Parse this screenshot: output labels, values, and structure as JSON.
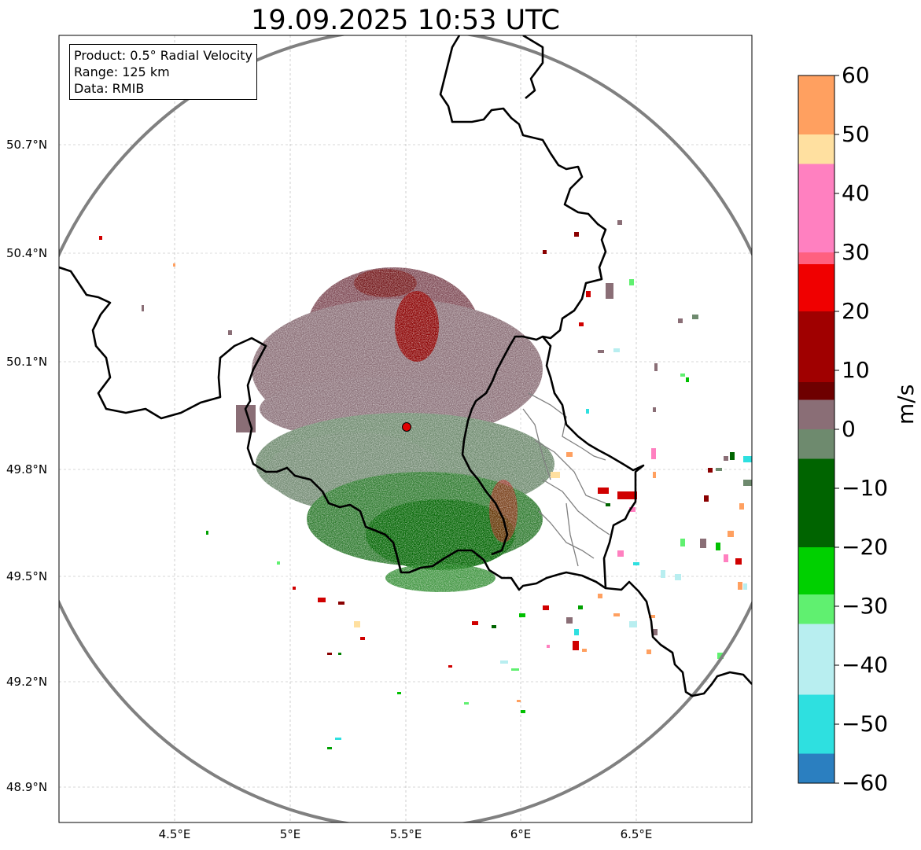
{
  "title": "19.09.2025 10:53 UTC",
  "info": {
    "product": "Product: 0.5° Radial Velocity",
    "range": "Range: 125 km",
    "data": "Data: RMIB"
  },
  "axes": {
    "lat_labels": [
      "50.7°N",
      "50.4°N",
      "50.1°N",
      "49.8°N",
      "49.5°N",
      "49.2°N",
      "48.9°N"
    ],
    "lon_labels": [
      "4.5°E",
      "5°E",
      "5.5°E",
      "6°E",
      "6.5°E"
    ]
  },
  "colorbar": {
    "unit": "m/s",
    "ticks": [
      "60",
      "50",
      "40",
      "30",
      "20",
      "10",
      "0",
      "−10",
      "−20",
      "−30",
      "−40",
      "−50",
      "−60"
    ],
    "min": -60,
    "max": 60,
    "colors": {
      "light_blue": "#2b7fc0",
      "cyan": "#2ee0e0",
      "pale_cyan": "#b8eef0",
      "light_green": "#60f070",
      "green": "#00d000",
      "dark_green": "#006400",
      "gray_green": "#6e8a6e",
      "gray_mauve": "#8a6e76",
      "maroon": "#6e0000",
      "red": "#f00000",
      "pink": "#ff80c0",
      "light_orange": "#ffe0a0",
      "orange": "#ffa060"
    }
  },
  "radar_site": {
    "lon": 5.506,
    "lat": 49.914
  }
}
